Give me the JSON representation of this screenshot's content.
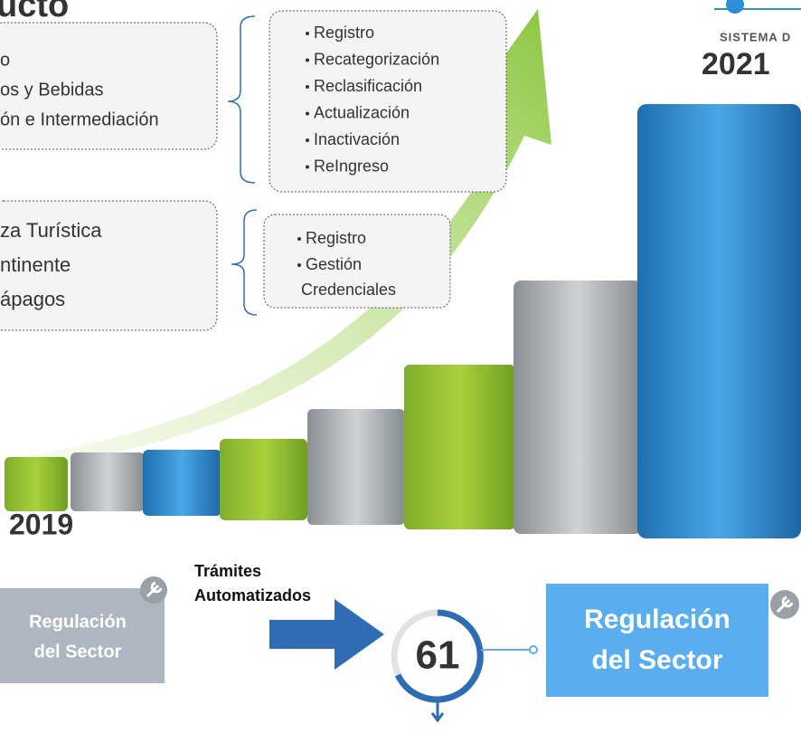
{
  "title": "ucto",
  "box_1": {
    "lines": [
      "o",
      "os y Bebidas",
      "ón e Intermediación"
    ]
  },
  "box_2": {
    "lines": [
      "za Turística",
      "ntinente",
      "ápagos"
    ]
  },
  "list_1": {
    "items": [
      "Registro",
      "Recategorización",
      "Reclasificación",
      "Actualización",
      "Inactivación",
      "ReIngreso"
    ]
  },
  "list_2": {
    "items": [
      "Registro",
      "Gestión Credenciales"
    ]
  },
  "brand": "SISTEMA D",
  "year_end": "2021",
  "year_start": "2019",
  "automated": {
    "label": "Trámites Automatizados",
    "count": "61"
  },
  "left_card": {
    "lines": [
      "Regulación",
      "del Sector"
    ]
  },
  "right_card": {
    "lines": [
      "Regulación",
      "del Sector"
    ]
  }
}
